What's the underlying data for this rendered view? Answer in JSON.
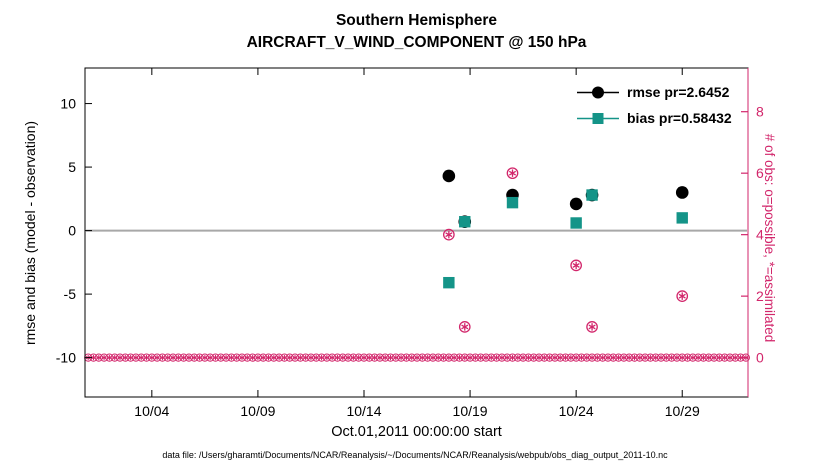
{
  "footer": "data file: /Users/gharamti/Documents/NCAR/Reanalysis/~/Documents/NCAR/Reanalysis/webpub/obs_diag_output_2011-10.nc",
  "chart_data": {
    "type": "scatter",
    "title": "Southern Hemisphere",
    "subtitle": "AIRCRAFT_V_WIND_COMPONENT @ 150 hPa",
    "xlabel": "Oct.01,2011 00:00:00 start",
    "ylabel_left": "rmse and bias (model - observation)",
    "ylabel_right": "# of obs: o=possible, *=assimilated",
    "x_unit": "day of October 2011",
    "xlim": [
      0.85,
      32.1
    ],
    "x_ticks": [
      {
        "value": 4,
        "label": "10/04"
      },
      {
        "value": 9,
        "label": "10/09"
      },
      {
        "value": 14,
        "label": "10/14"
      },
      {
        "value": 19,
        "label": "10/19"
      },
      {
        "value": 24,
        "label": "10/24"
      },
      {
        "value": 29,
        "label": "10/29"
      }
    ],
    "ylim_left": [
      -13.1,
      12.8
    ],
    "y_ticks_left": [
      -10,
      -5,
      0,
      5,
      10
    ],
    "y_ticks_right": [
      0,
      2,
      4,
      6,
      8
    ],
    "right_axis_map": {
      "left_value_at_zero": -10,
      "left_units_per_right_unit": 2.42
    },
    "zero_line": 0,
    "grid": false,
    "legend_location": "northeast-inside",
    "colors": {
      "rmse": "#000000",
      "bias": "#149488",
      "obs": "#d2266b",
      "zero_line": "#a8a8a8",
      "axis": "#000000"
    },
    "legend": [
      {
        "label": "rmse pr=2.6452",
        "marker": "filled-circle",
        "color": "#000000"
      },
      {
        "label": "bias pr=0.58432",
        "marker": "filled-square",
        "color": "#149488"
      }
    ],
    "series": [
      {
        "name": "rmse",
        "axis": "left",
        "marker": "filled-circle",
        "color": "#000000",
        "points": [
          {
            "day": 18,
            "value": 4.3
          },
          {
            "day": 18.75,
            "value": 0.7
          },
          {
            "day": 21,
            "value": 2.8
          },
          {
            "day": 24,
            "value": 2.1
          },
          {
            "day": 24.75,
            "value": 2.8
          },
          {
            "day": 29,
            "value": 3.0
          }
        ]
      },
      {
        "name": "bias",
        "axis": "left",
        "marker": "filled-square",
        "color": "#149488",
        "points": [
          {
            "day": 18,
            "value": -4.1
          },
          {
            "day": 18.75,
            "value": 0.7
          },
          {
            "day": 21,
            "value": 2.2
          },
          {
            "day": 24,
            "value": 0.6
          },
          {
            "day": 24.75,
            "value": 2.8
          },
          {
            "day": 29,
            "value": 1.0
          }
        ]
      },
      {
        "name": "obs-count",
        "axis": "right",
        "marker": "circled-asterisk",
        "color": "#d2266b",
        "points": [
          {
            "day": 18,
            "value": 4
          },
          {
            "day": 18.75,
            "value": 1
          },
          {
            "day": 21,
            "value": 6
          },
          {
            "day": 24,
            "value": 3
          },
          {
            "day": 24.75,
            "value": 1
          },
          {
            "day": 29,
            "value": 2
          }
        ],
        "zero_row": {
          "start_day": 1.0,
          "end_day": 32.0,
          "step_days": 0.25,
          "value": 0
        }
      }
    ]
  }
}
